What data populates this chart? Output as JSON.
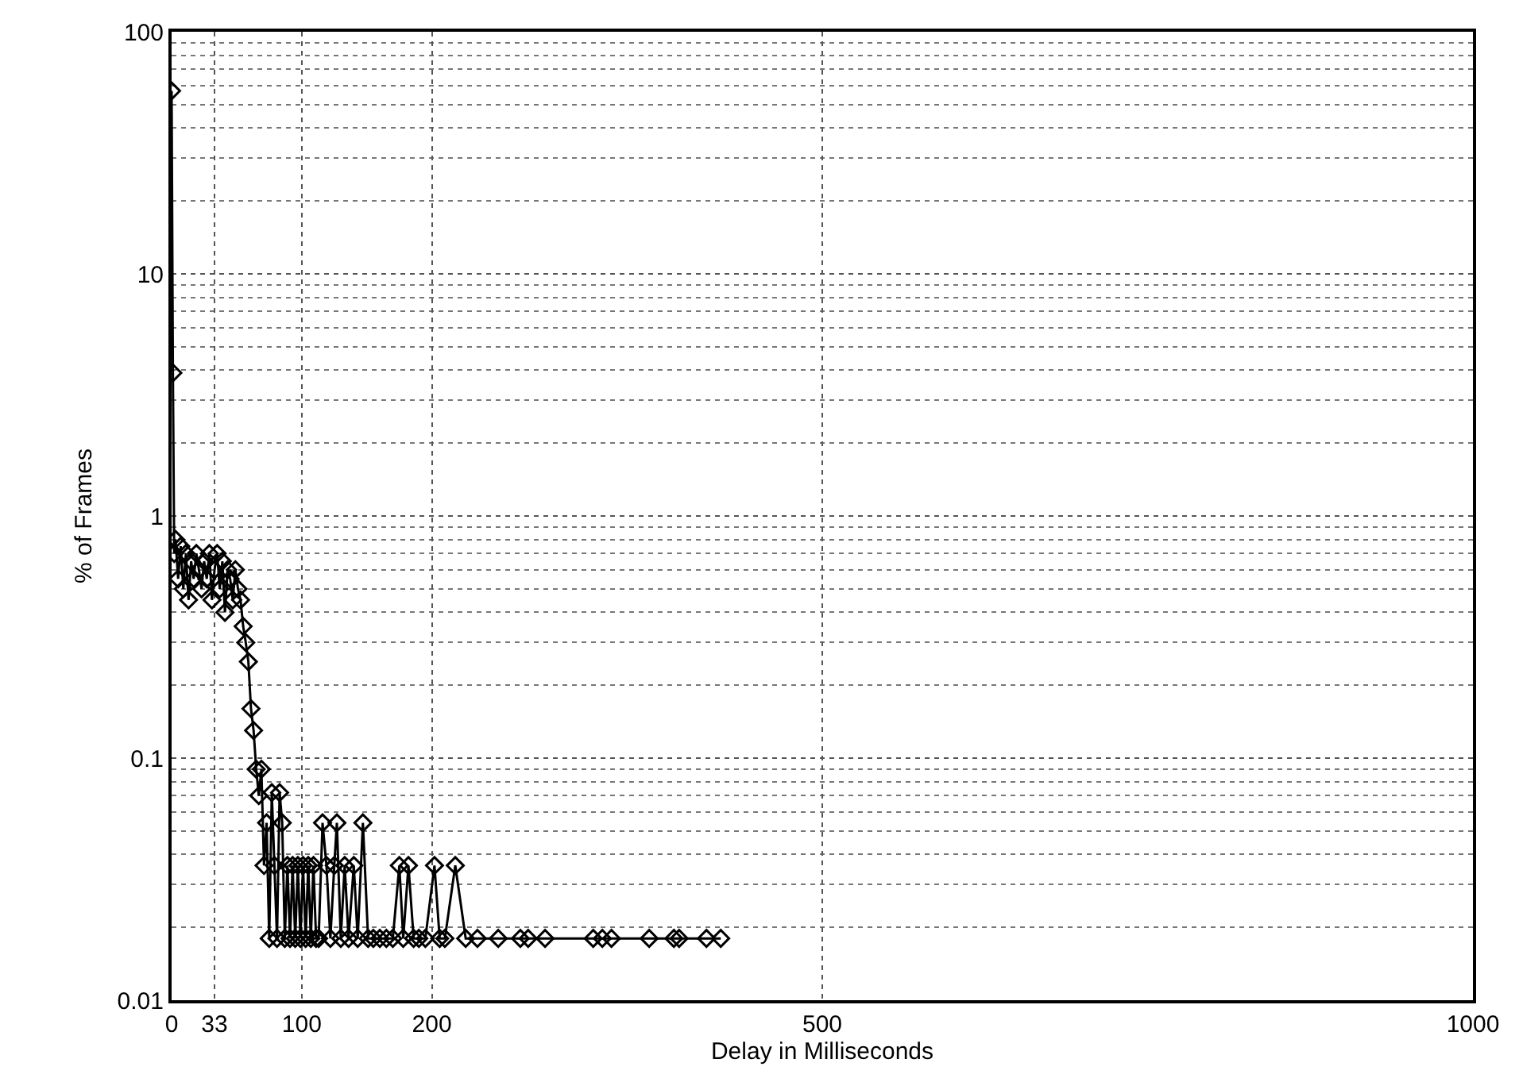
{
  "chart_data": {
    "type": "line",
    "xlabel": "Delay in Milliseconds",
    "ylabel": "% of Frames",
    "x": [
      0,
      1,
      2,
      3,
      5,
      7,
      9,
      11,
      13,
      15,
      17,
      19,
      21,
      23,
      25,
      27,
      29,
      31,
      33,
      35,
      37,
      39,
      41,
      43,
      45,
      47,
      49,
      51,
      53,
      55,
      57,
      59,
      61,
      63,
      65,
      67,
      69,
      71,
      73,
      75,
      77,
      79,
      81,
      83,
      85,
      87,
      89,
      91,
      93,
      95,
      97,
      99,
      101,
      103,
      105,
      107,
      109,
      111,
      113,
      116,
      119,
      122,
      125,
      127,
      130,
      133,
      136,
      140,
      143,
      147,
      151,
      155,
      160,
      165,
      170,
      175,
      178,
      182,
      186,
      190,
      195,
      202,
      206,
      210,
      218,
      226,
      235,
      251,
      268,
      274,
      287,
      324,
      331,
      338,
      367,
      386,
      390,
      411,
      422
    ],
    "series": [
      {
        "color": "#000000",
        "values": [
          57,
          3.9,
          0.7,
          0.8,
          0.55,
          0.75,
          0.5,
          0.7,
          0.45,
          0.65,
          0.55,
          0.7,
          0.6,
          0.5,
          0.65,
          0.55,
          0.7,
          0.45,
          0.6,
          0.7,
          0.5,
          0.65,
          0.4,
          0.6,
          0.55,
          0.45,
          0.6,
          0.5,
          0.45,
          0.35,
          0.3,
          0.25,
          0.16,
          0.13,
          0.09,
          0.07,
          0.09,
          0.036,
          0.054,
          0.018,
          0.072,
          0.036,
          0.018,
          0.072,
          0.054,
          0.018,
          0.036,
          0.018,
          0.036,
          0.018,
          0.036,
          0.018,
          0.036,
          0.018,
          0.036,
          0.018,
          0.036,
          0.018,
          0.018,
          0.054,
          0.036,
          0.018,
          0.036,
          0.054,
          0.018,
          0.036,
          0.018,
          0.036,
          0.018,
          0.054,
          0.018,
          0.018,
          0.018,
          0.018,
          0.018,
          0.036,
          0.018,
          0.036,
          0.018,
          0.018,
          0.018,
          0.036,
          0.018,
          0.018,
          0.036,
          0.018,
          0.018,
          0.018,
          0.018,
          0.018,
          0.018,
          0.018,
          0.018,
          0.018,
          0.018,
          0.018,
          0.018,
          0.018,
          0.018
        ]
      }
    ],
    "xlim": [
      0,
      1000
    ],
    "xticks": [
      0,
      33,
      100,
      200,
      500,
      1000
    ],
    "ylim": [
      0.01,
      100
    ],
    "yticks": [
      0.01,
      0.1,
      1,
      10,
      100
    ],
    "log": "y",
    "grid": true,
    "marker": "diamond",
    "line_style": "solid"
  }
}
